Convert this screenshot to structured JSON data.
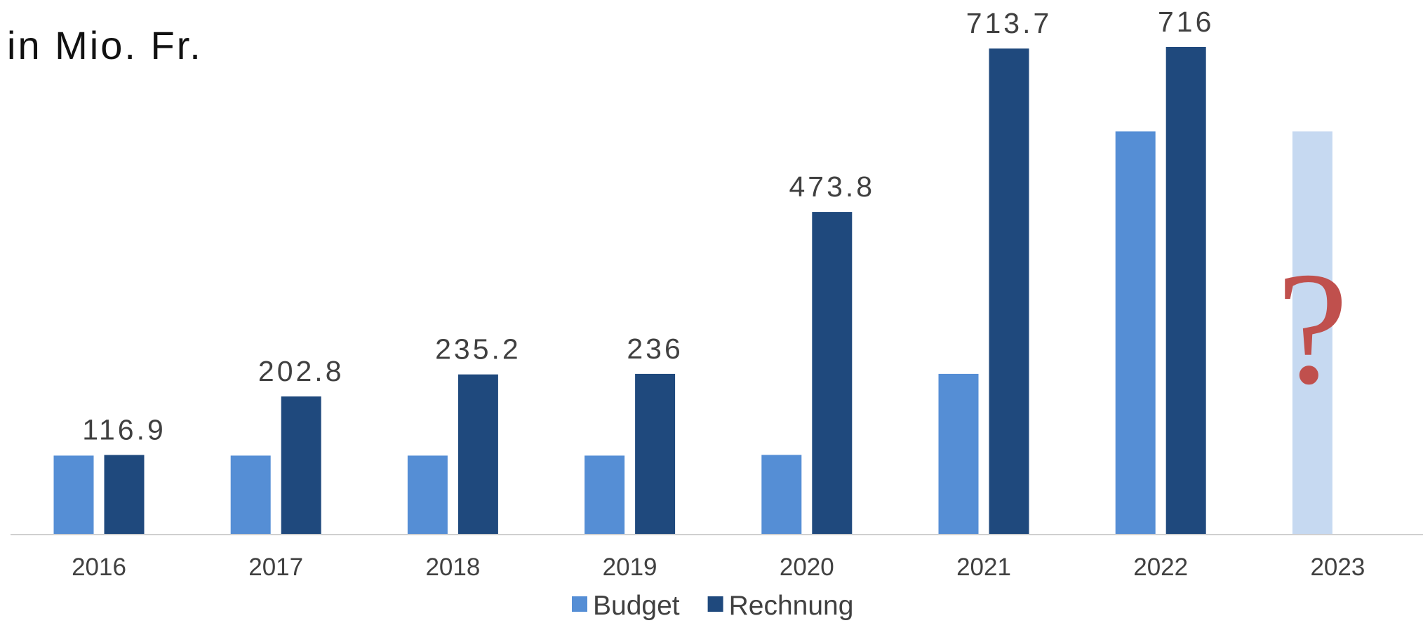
{
  "chart_data": {
    "type": "bar",
    "title": "in Mio. Fr.",
    "categories": [
      "2016",
      "2017",
      "2018",
      "2019",
      "2020",
      "2021",
      "2022",
      "2023"
    ],
    "series": [
      {
        "name": "Budget",
        "color": "#558ed5",
        "colors": [
          "#558ed5",
          "#558ed5",
          "#558ed5",
          "#558ed5",
          "#558ed5",
          "#558ed5",
          "#558ed5",
          "#c6d9f1"
        ],
        "values": [
          116,
          116,
          116,
          116,
          117,
          236,
          592,
          592
        ]
      },
      {
        "name": "Rechnung",
        "color": "#1f497d",
        "values": [
          116.9,
          202.8,
          235.2,
          236,
          473.8,
          713.7,
          716,
          null
        ],
        "data_labels": true
      }
    ],
    "ylim": [
      0,
      785
    ],
    "legend": "bottom",
    "annotations": [
      {
        "text": "?",
        "color": "#c0504d"
      }
    ]
  }
}
